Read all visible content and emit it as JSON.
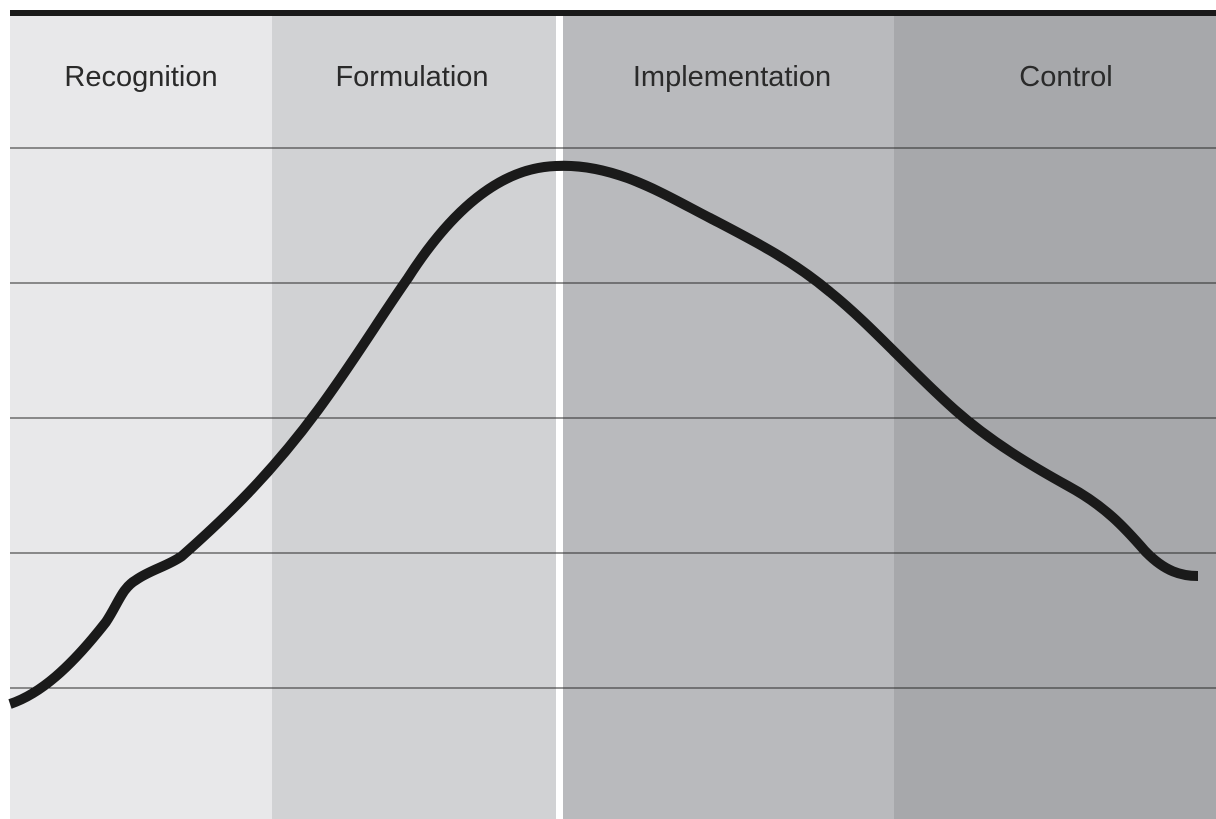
{
  "diagram": {
    "phases": [
      {
        "id": "recognition",
        "label": "Recognition",
        "fill": "#e8e8ea"
      },
      {
        "id": "formulation",
        "label": "Formulation",
        "fill": "#d1d2d4"
      },
      {
        "id": "implementation",
        "label": "Implementation",
        "fill": "#b9babd"
      },
      {
        "id": "control",
        "label": "Control",
        "fill": "#a7a8ab"
      }
    ],
    "curve_color": "#1a1a1a",
    "top_rule_color": "#1a1a1a",
    "gridline_color": "#2a2a2a",
    "divider_color": "#ffffff"
  }
}
